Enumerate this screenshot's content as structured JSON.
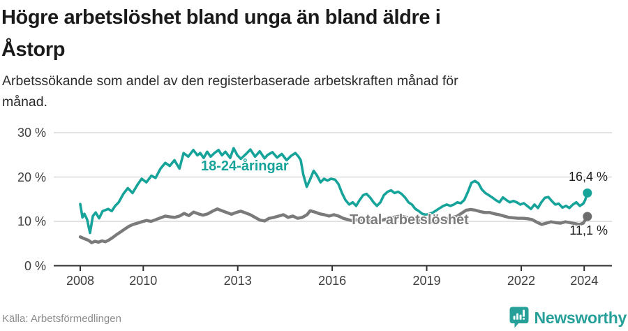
{
  "header": {
    "title_lines": [
      "Högre arbetslöshet bland unga än bland äldre i",
      "Åstorp"
    ],
    "subtitle_lines": [
      "Arbetssökande som andel av den registerbaserade arbetskraften månad för",
      "månad."
    ]
  },
  "footer": {
    "source": "Källa: Arbetsförmedlingen",
    "brand_name": "Newsworthy",
    "brand_icon": "newsworthy-bar-chart-speech-bubble-icon"
  },
  "colors": {
    "youth_line": "#16a39a",
    "youth_dot": "#16a39a",
    "total_line": "#7a7a7a",
    "total_dot": "#6d6d6d",
    "total_label": "#7c7c7c",
    "grid": "#d9d9d9",
    "axis": "#2f2f2f",
    "value_label": "#1d1d1d",
    "brand": "#27a09a"
  },
  "chart_data": {
    "type": "line",
    "title": "Högre arbetslöshet bland unga än bland äldre i Åstorp",
    "subtitle": "Arbetssökande som andel av den registerbaserade arbetskraften månad för månad.",
    "unit": "%",
    "grid": true,
    "legend_position": "inline-labels",
    "x_axis": {
      "label": "",
      "range": [
        2007.7,
        2024.9
      ],
      "ticks": [
        {
          "year": 2008,
          "label": "2008"
        },
        {
          "year": 2010,
          "label": "2010"
        },
        {
          "year": 2013,
          "label": "2013"
        },
        {
          "year": 2016,
          "label": "2016"
        },
        {
          "year": 2019,
          "label": "2019"
        },
        {
          "year": 2022,
          "label": "2022"
        },
        {
          "year": 2024,
          "label": "2024"
        }
      ]
    },
    "y_axis": {
      "label": "",
      "range": [
        0,
        32
      ],
      "ticks": [
        {
          "value": 0,
          "label": "0 %"
        },
        {
          "value": 10,
          "label": "10 %"
        },
        {
          "value": 20,
          "label": "20 %"
        },
        {
          "value": 30,
          "label": "30 %"
        }
      ]
    },
    "series": [
      {
        "id": "youth",
        "name": "18-24-åringar",
        "color": "#16a39a",
        "dot_color": "#16a39a",
        "width": 3.6,
        "end_value": 16.4,
        "end_label": "16,4 %",
        "points": [
          [
            2008.0,
            13.9
          ],
          [
            2008.07,
            10.9
          ],
          [
            2008.13,
            11.7
          ],
          [
            2008.22,
            10.4
          ],
          [
            2008.31,
            7.4
          ],
          [
            2008.4,
            11.2
          ],
          [
            2008.49,
            12.0
          ],
          [
            2008.6,
            10.7
          ],
          [
            2008.71,
            12.3
          ],
          [
            2008.89,
            12.8
          ],
          [
            2009.0,
            12.3
          ],
          [
            2009.11,
            13.5
          ],
          [
            2009.22,
            14.3
          ],
          [
            2009.37,
            16.2
          ],
          [
            2009.51,
            17.5
          ],
          [
            2009.66,
            16.4
          ],
          [
            2009.82,
            18.3
          ],
          [
            2009.95,
            19.6
          ],
          [
            2010.1,
            18.8
          ],
          [
            2010.26,
            20.3
          ],
          [
            2010.39,
            19.8
          ],
          [
            2010.55,
            21.9
          ],
          [
            2010.7,
            23.2
          ],
          [
            2010.84,
            22.5
          ],
          [
            2010.99,
            23.8
          ],
          [
            2011.15,
            21.9
          ],
          [
            2011.28,
            25.4
          ],
          [
            2011.43,
            24.6
          ],
          [
            2011.59,
            26.1
          ],
          [
            2011.72,
            24.9
          ],
          [
            2011.81,
            25.4
          ],
          [
            2011.92,
            24.3
          ],
          [
            2012.03,
            25.7
          ],
          [
            2012.14,
            24.6
          ],
          [
            2012.26,
            25.4
          ],
          [
            2012.39,
            26.1
          ],
          [
            2012.5,
            24.9
          ],
          [
            2012.61,
            25.7
          ],
          [
            2012.76,
            24.3
          ],
          [
            2012.87,
            26.5
          ],
          [
            2012.99,
            24.9
          ],
          [
            2013.1,
            24.1
          ],
          [
            2013.25,
            25.1
          ],
          [
            2013.4,
            26.2
          ],
          [
            2013.55,
            24.6
          ],
          [
            2013.7,
            25.8
          ],
          [
            2013.85,
            24.2
          ],
          [
            2013.95,
            25.0
          ],
          [
            2014.1,
            25.6
          ],
          [
            2014.25,
            24.4
          ],
          [
            2014.4,
            25.2
          ],
          [
            2014.55,
            23.8
          ],
          [
            2014.7,
            24.8
          ],
          [
            2014.83,
            25.4
          ],
          [
            2014.93,
            24.6
          ],
          [
            2015.0,
            23.8
          ],
          [
            2015.08,
            20.6
          ],
          [
            2015.19,
            17.8
          ],
          [
            2015.3,
            19.5
          ],
          [
            2015.41,
            21.4
          ],
          [
            2015.52,
            20.3
          ],
          [
            2015.63,
            18.8
          ],
          [
            2015.74,
            19.6
          ],
          [
            2015.85,
            19.2
          ],
          [
            2015.96,
            19.6
          ],
          [
            2016.09,
            19.4
          ],
          [
            2016.2,
            18.4
          ],
          [
            2016.31,
            16.4
          ],
          [
            2016.42,
            14.8
          ],
          [
            2016.54,
            13.8
          ],
          [
            2016.65,
            14.3
          ],
          [
            2016.76,
            13.5
          ],
          [
            2016.87,
            14.8
          ],
          [
            2016.98,
            15.9
          ],
          [
            2017.09,
            16.2
          ],
          [
            2017.2,
            15.4
          ],
          [
            2017.31,
            14.3
          ],
          [
            2017.42,
            13.5
          ],
          [
            2017.53,
            14.3
          ],
          [
            2017.64,
            15.9
          ],
          [
            2017.76,
            16.7
          ],
          [
            2017.87,
            17.0
          ],
          [
            2017.98,
            16.4
          ],
          [
            2018.09,
            16.7
          ],
          [
            2018.2,
            16.2
          ],
          [
            2018.31,
            15.4
          ],
          [
            2018.42,
            14.3
          ],
          [
            2018.53,
            13.8
          ],
          [
            2018.64,
            12.8
          ],
          [
            2018.75,
            12.3
          ],
          [
            2018.86,
            11.7
          ],
          [
            2018.97,
            11.5
          ],
          [
            2019.09,
            11.7
          ],
          [
            2019.2,
            12.0
          ],
          [
            2019.31,
            12.5
          ],
          [
            2019.42,
            13.0
          ],
          [
            2019.53,
            13.5
          ],
          [
            2019.64,
            13.8
          ],
          [
            2019.75,
            13.5
          ],
          [
            2019.86,
            13.8
          ],
          [
            2019.97,
            14.3
          ],
          [
            2020.08,
            14.1
          ],
          [
            2020.19,
            14.8
          ],
          [
            2020.31,
            16.7
          ],
          [
            2020.42,
            18.7
          ],
          [
            2020.53,
            19.1
          ],
          [
            2020.64,
            18.6
          ],
          [
            2020.75,
            17.2
          ],
          [
            2020.86,
            16.4
          ],
          [
            2020.97,
            15.9
          ],
          [
            2021.08,
            15.4
          ],
          [
            2021.19,
            14.8
          ],
          [
            2021.31,
            14.3
          ],
          [
            2021.42,
            15.4
          ],
          [
            2021.53,
            14.8
          ],
          [
            2021.64,
            14.3
          ],
          [
            2021.75,
            14.6
          ],
          [
            2021.86,
            14.3
          ],
          [
            2021.97,
            13.8
          ],
          [
            2022.08,
            14.1
          ],
          [
            2022.19,
            13.5
          ],
          [
            2022.31,
            12.8
          ],
          [
            2022.42,
            13.8
          ],
          [
            2022.53,
            13.0
          ],
          [
            2022.64,
            14.3
          ],
          [
            2022.75,
            15.3
          ],
          [
            2022.86,
            15.5
          ],
          [
            2022.97,
            14.6
          ],
          [
            2023.08,
            13.8
          ],
          [
            2023.19,
            14.0
          ],
          [
            2023.31,
            13.1
          ],
          [
            2023.42,
            13.5
          ],
          [
            2023.53,
            13.0
          ],
          [
            2023.64,
            13.8
          ],
          [
            2023.75,
            14.3
          ],
          [
            2023.86,
            13.5
          ],
          [
            2023.97,
            14.0
          ],
          [
            2024.03,
            14.8
          ],
          [
            2024.1,
            16.4
          ]
        ]
      },
      {
        "id": "total",
        "name": "Total arbetslöshet",
        "color": "#7a7a7a",
        "dot_color": "#6d6d6d",
        "width": 4.4,
        "end_value": 11.1,
        "end_label": "11,1 %",
        "points": [
          [
            2008.0,
            6.5
          ],
          [
            2008.13,
            6.1
          ],
          [
            2008.27,
            5.7
          ],
          [
            2008.36,
            5.2
          ],
          [
            2008.47,
            5.5
          ],
          [
            2008.58,
            5.3
          ],
          [
            2008.69,
            5.6
          ],
          [
            2008.8,
            5.4
          ],
          [
            2008.91,
            5.8
          ],
          [
            2009.02,
            6.3
          ],
          [
            2009.15,
            7.0
          ],
          [
            2009.28,
            7.6
          ],
          [
            2009.42,
            8.3
          ],
          [
            2009.55,
            8.9
          ],
          [
            2009.68,
            9.3
          ],
          [
            2009.82,
            9.6
          ],
          [
            2009.95,
            9.9
          ],
          [
            2010.1,
            10.2
          ],
          [
            2010.25,
            10.0
          ],
          [
            2010.4,
            10.4
          ],
          [
            2010.55,
            10.8
          ],
          [
            2010.7,
            11.2
          ],
          [
            2010.85,
            11.0
          ],
          [
            2011.0,
            10.9
          ],
          [
            2011.15,
            11.2
          ],
          [
            2011.3,
            11.8
          ],
          [
            2011.45,
            11.3
          ],
          [
            2011.6,
            12.1
          ],
          [
            2011.75,
            11.7
          ],
          [
            2011.9,
            11.4
          ],
          [
            2012.05,
            11.7
          ],
          [
            2012.2,
            12.3
          ],
          [
            2012.35,
            12.8
          ],
          [
            2012.5,
            12.4
          ],
          [
            2012.65,
            12.0
          ],
          [
            2012.8,
            11.6
          ],
          [
            2012.95,
            12.0
          ],
          [
            2013.1,
            12.3
          ],
          [
            2013.25,
            11.9
          ],
          [
            2013.4,
            11.5
          ],
          [
            2013.55,
            10.9
          ],
          [
            2013.7,
            10.3
          ],
          [
            2013.85,
            10.1
          ],
          [
            2014.0,
            10.7
          ],
          [
            2014.15,
            10.9
          ],
          [
            2014.3,
            11.2
          ],
          [
            2014.45,
            11.5
          ],
          [
            2014.6,
            10.9
          ],
          [
            2014.75,
            11.2
          ],
          [
            2014.9,
            10.7
          ],
          [
            2015.05,
            10.9
          ],
          [
            2015.2,
            11.5
          ],
          [
            2015.3,
            12.4
          ],
          [
            2015.45,
            12.1
          ],
          [
            2015.6,
            11.7
          ],
          [
            2015.75,
            11.5
          ],
          [
            2015.9,
            11.2
          ],
          [
            2016.05,
            11.5
          ],
          [
            2016.2,
            11.2
          ],
          [
            2016.35,
            10.7
          ],
          [
            2016.5,
            10.4
          ],
          [
            2016.65,
            10.1
          ],
          [
            2016.8,
            10.4
          ],
          [
            2016.95,
            10.2
          ],
          [
            2017.1,
            10.1
          ],
          [
            2017.25,
            10.3
          ],
          [
            2017.4,
            10.0
          ],
          [
            2017.55,
            10.2
          ],
          [
            2017.7,
            10.5
          ],
          [
            2017.85,
            10.8
          ],
          [
            2018.0,
            11.0
          ],
          [
            2018.15,
            11.2
          ],
          [
            2018.3,
            11.0
          ],
          [
            2018.45,
            10.7
          ],
          [
            2018.6,
            10.4
          ],
          [
            2018.75,
            10.2
          ],
          [
            2018.9,
            10.1
          ],
          [
            2019.05,
            10.0
          ],
          [
            2019.2,
            9.9
          ],
          [
            2019.35,
            10.1
          ],
          [
            2019.5,
            10.3
          ],
          [
            2019.65,
            10.6
          ],
          [
            2019.8,
            10.9
          ],
          [
            2019.95,
            11.1
          ],
          [
            2020.1,
            11.8
          ],
          [
            2020.25,
            12.5
          ],
          [
            2020.4,
            12.7
          ],
          [
            2020.55,
            12.5
          ],
          [
            2020.7,
            12.2
          ],
          [
            2020.85,
            12.0
          ],
          [
            2021.0,
            12.0
          ],
          [
            2021.15,
            11.7
          ],
          [
            2021.3,
            11.5
          ],
          [
            2021.45,
            11.2
          ],
          [
            2021.6,
            10.9
          ],
          [
            2021.75,
            10.8
          ],
          [
            2021.9,
            10.7
          ],
          [
            2022.05,
            10.7
          ],
          [
            2022.2,
            10.6
          ],
          [
            2022.35,
            10.4
          ],
          [
            2022.5,
            9.8
          ],
          [
            2022.65,
            9.3
          ],
          [
            2022.8,
            9.6
          ],
          [
            2022.95,
            9.9
          ],
          [
            2023.1,
            9.7
          ],
          [
            2023.25,
            9.6
          ],
          [
            2023.4,
            9.9
          ],
          [
            2023.55,
            9.7
          ],
          [
            2023.7,
            9.5
          ],
          [
            2023.85,
            9.3
          ],
          [
            2023.97,
            9.6
          ],
          [
            2024.03,
            10.3
          ],
          [
            2024.1,
            11.1
          ]
        ]
      }
    ]
  }
}
